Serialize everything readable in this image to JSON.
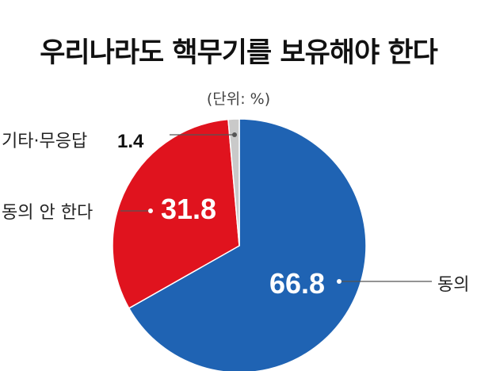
{
  "chart_data": {
    "type": "pie",
    "title": "우리나라도 핵무기를 보유해야 한다",
    "subtitle": "(단위: %)",
    "start_angle_deg": 0,
    "direction": "clockwise",
    "slices": [
      {
        "label": "동의",
        "value": 66.8,
        "value_label": "66.8",
        "color": "#1f63b3"
      },
      {
        "label": "동의 안 한다",
        "value": 31.8,
        "value_label": "31.8",
        "color": "#e0131e"
      },
      {
        "label": "기타·무응답",
        "value": 1.4,
        "value_label": "1.4",
        "color": "#c9c9c9"
      }
    ]
  }
}
